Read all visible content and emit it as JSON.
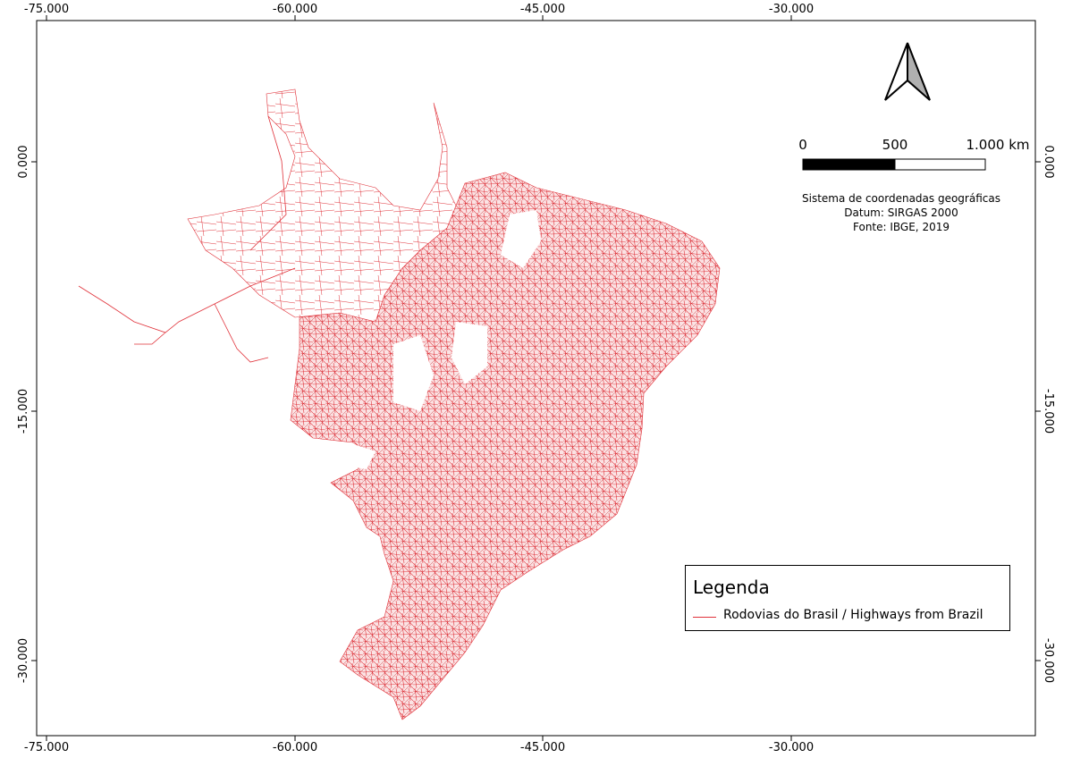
{
  "map": {
    "x_ticks": [
      "-75.000",
      "-60.000",
      "-45.000",
      "-30.000"
    ],
    "y_ticks": [
      "0.000",
      "-15.000",
      "-30.000"
    ],
    "road_color": "#e0323a",
    "land_color": "#ffffff"
  },
  "north_arrow": {
    "icon": "north-arrow-icon"
  },
  "scale_bar": {
    "labels": [
      "0",
      "500",
      "1.000 km"
    ]
  },
  "info": {
    "line1": "Sistema de coordenadas geográficas",
    "line2": "Datum: SIRGAS 2000",
    "line3": "Fonte: IBGE, 2019"
  },
  "legend": {
    "title": "Legenda",
    "item_label": "Rodovias do Brasil / Highways from Brazil",
    "item_color": "#e0323a"
  }
}
